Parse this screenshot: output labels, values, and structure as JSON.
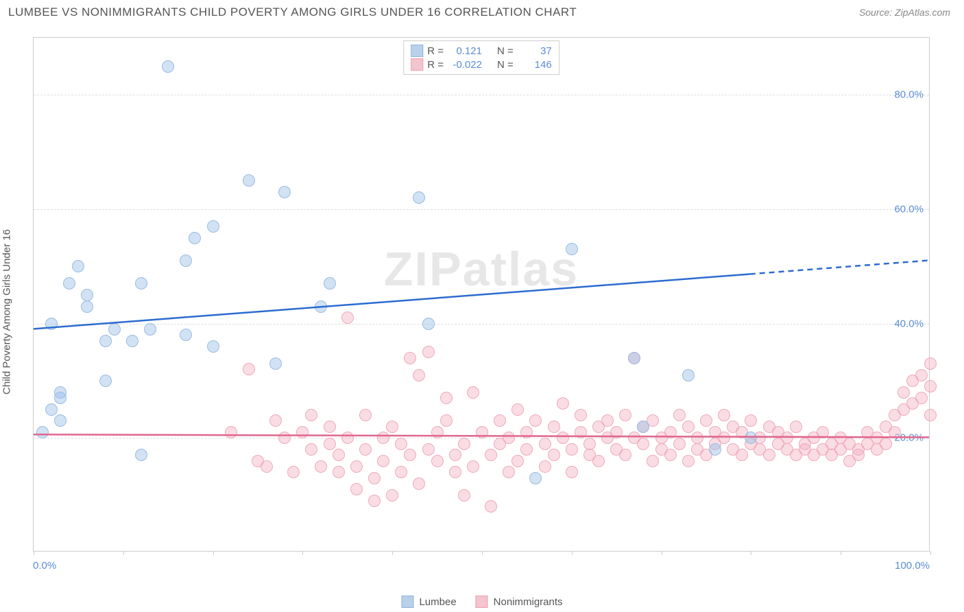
{
  "title": "LUMBEE VS NONIMMIGRANTS CHILD POVERTY AMONG GIRLS UNDER 16 CORRELATION CHART",
  "source": "Source: ZipAtlas.com",
  "y_axis_label": "Child Poverty Among Girls Under 16",
  "watermark": "ZIPatlas",
  "chart": {
    "type": "scatter",
    "xlim": [
      0,
      100
    ],
    "ylim": [
      0,
      90
    ],
    "x_ticks": [
      0,
      10,
      20,
      30,
      40,
      50,
      60,
      70,
      80,
      90,
      100
    ],
    "x_tick_labels": {
      "0": "0.0%",
      "100": "100.0%"
    },
    "y_ticks": [
      20,
      40,
      60,
      80
    ],
    "grid_color": "#dddddd",
    "border_color": "#cccccc",
    "background_color": "#ffffff",
    "marker_radius": 9,
    "marker_stroke_width": 1.5,
    "series": [
      {
        "name": "Lumbee",
        "color_fill": "rgba(150,190,230,0.45)",
        "color_stroke": "#9bbbe0",
        "swatch_fill": "#b8d0ea",
        "swatch_stroke": "#8fb3dd",
        "R": "0.121",
        "N": "37",
        "trend": {
          "y_at_x0": 39,
          "y_at_x100": 51,
          "solid_until_x": 80,
          "color": "#2b6bd0",
          "width": 2.5
        },
        "points": [
          [
            3,
            27
          ],
          [
            2,
            25
          ],
          [
            3,
            23
          ],
          [
            3,
            28
          ],
          [
            1,
            21
          ],
          [
            2,
            40
          ],
          [
            4,
            47
          ],
          [
            5,
            50
          ],
          [
            6,
            45
          ],
          [
            6,
            43
          ],
          [
            8,
            30
          ],
          [
            8,
            37
          ],
          [
            9,
            39
          ],
          [
            11,
            37
          ],
          [
            12,
            47
          ],
          [
            12,
            17
          ],
          [
            13,
            39
          ],
          [
            15,
            85
          ],
          [
            17,
            38
          ],
          [
            17,
            51
          ],
          [
            18,
            55
          ],
          [
            20,
            36
          ],
          [
            20,
            57
          ],
          [
            24,
            65
          ],
          [
            27,
            33
          ],
          [
            28,
            63
          ],
          [
            33,
            47
          ],
          [
            32,
            43
          ],
          [
            43,
            62
          ],
          [
            44,
            40
          ],
          [
            56,
            13
          ],
          [
            60,
            53
          ],
          [
            67,
            34
          ],
          [
            68,
            22
          ],
          [
            73,
            31
          ],
          [
            76,
            18
          ],
          [
            80,
            20
          ]
        ]
      },
      {
        "name": "Nonimmigrants",
        "color_fill": "rgba(245,180,195,0.45)",
        "color_stroke": "#eea9b8",
        "swatch_fill": "#f4c4cf",
        "swatch_stroke": "#ec9fb1",
        "R": "-0.022",
        "N": "146",
        "trend": {
          "y_at_x0": 20.5,
          "y_at_x100": 20,
          "solid_until_x": 100,
          "color": "#e06690",
          "width": 2.5
        },
        "points": [
          [
            22,
            21
          ],
          [
            24,
            32
          ],
          [
            25,
            16
          ],
          [
            26,
            15
          ],
          [
            27,
            23
          ],
          [
            28,
            20
          ],
          [
            29,
            14
          ],
          [
            30,
            21
          ],
          [
            31,
            24
          ],
          [
            31,
            18
          ],
          [
            32,
            15
          ],
          [
            33,
            19
          ],
          [
            33,
            22
          ],
          [
            34,
            14
          ],
          [
            34,
            17
          ],
          [
            35,
            41
          ],
          [
            35,
            20
          ],
          [
            36,
            15
          ],
          [
            36,
            11
          ],
          [
            37,
            24
          ],
          [
            37,
            18
          ],
          [
            38,
            9
          ],
          [
            38,
            13
          ],
          [
            39,
            20
          ],
          [
            39,
            16
          ],
          [
            40,
            22
          ],
          [
            40,
            10
          ],
          [
            41,
            19
          ],
          [
            41,
            14
          ],
          [
            42,
            34
          ],
          [
            42,
            17
          ],
          [
            43,
            31
          ],
          [
            43,
            12
          ],
          [
            44,
            35
          ],
          [
            44,
            18
          ],
          [
            45,
            16
          ],
          [
            45,
            21
          ],
          [
            46,
            23
          ],
          [
            46,
            27
          ],
          [
            47,
            17
          ],
          [
            47,
            14
          ],
          [
            48,
            19
          ],
          [
            48,
            10
          ],
          [
            49,
            28
          ],
          [
            49,
            15
          ],
          [
            50,
            21
          ],
          [
            51,
            8
          ],
          [
            51,
            17
          ],
          [
            52,
            19
          ],
          [
            52,
            23
          ],
          [
            53,
            14
          ],
          [
            53,
            20
          ],
          [
            54,
            16
          ],
          [
            54,
            25
          ],
          [
            55,
            18
          ],
          [
            55,
            21
          ],
          [
            56,
            23
          ],
          [
            57,
            15
          ],
          [
            57,
            19
          ],
          [
            58,
            22
          ],
          [
            58,
            17
          ],
          [
            59,
            26
          ],
          [
            59,
            20
          ],
          [
            60,
            18
          ],
          [
            60,
            14
          ],
          [
            61,
            21
          ],
          [
            61,
            24
          ],
          [
            62,
            17
          ],
          [
            62,
            19
          ],
          [
            63,
            22
          ],
          [
            63,
            16
          ],
          [
            64,
            20
          ],
          [
            64,
            23
          ],
          [
            65,
            18
          ],
          [
            65,
            21
          ],
          [
            66,
            24
          ],
          [
            66,
            17
          ],
          [
            67,
            34
          ],
          [
            67,
            20
          ],
          [
            68,
            19
          ],
          [
            68,
            22
          ],
          [
            69,
            16
          ],
          [
            69,
            23
          ],
          [
            70,
            20
          ],
          [
            70,
            18
          ],
          [
            71,
            21
          ],
          [
            71,
            17
          ],
          [
            72,
            24
          ],
          [
            72,
            19
          ],
          [
            73,
            22
          ],
          [
            73,
            16
          ],
          [
            74,
            20
          ],
          [
            74,
            18
          ],
          [
            75,
            23
          ],
          [
            75,
            17
          ],
          [
            76,
            21
          ],
          [
            76,
            19
          ],
          [
            77,
            24
          ],
          [
            77,
            20
          ],
          [
            78,
            18
          ],
          [
            78,
            22
          ],
          [
            79,
            17
          ],
          [
            79,
            21
          ],
          [
            80,
            19
          ],
          [
            80,
            23
          ],
          [
            81,
            18
          ],
          [
            81,
            20
          ],
          [
            82,
            22
          ],
          [
            82,
            17
          ],
          [
            83,
            21
          ],
          [
            83,
            19
          ],
          [
            84,
            18
          ],
          [
            84,
            20
          ],
          [
            85,
            17
          ],
          [
            85,
            22
          ],
          [
            86,
            19
          ],
          [
            86,
            18
          ],
          [
            87,
            20
          ],
          [
            87,
            17
          ],
          [
            88,
            21
          ],
          [
            88,
            18
          ],
          [
            89,
            19
          ],
          [
            89,
            17
          ],
          [
            90,
            20
          ],
          [
            90,
            18
          ],
          [
            91,
            16
          ],
          [
            91,
            19
          ],
          [
            92,
            18
          ],
          [
            92,
            17
          ],
          [
            93,
            19
          ],
          [
            93,
            21
          ],
          [
            94,
            18
          ],
          [
            94,
            20
          ],
          [
            95,
            22
          ],
          [
            95,
            19
          ],
          [
            96,
            24
          ],
          [
            96,
            21
          ],
          [
            97,
            25
          ],
          [
            97,
            28
          ],
          [
            98,
            26
          ],
          [
            98,
            30
          ],
          [
            99,
            27
          ],
          [
            99,
            31
          ],
          [
            100,
            33
          ],
          [
            100,
            29
          ],
          [
            100,
            24
          ]
        ]
      }
    ]
  },
  "stats_labels": {
    "R": "R =",
    "N": "N ="
  },
  "bottom_legend": [
    {
      "label": "Lumbee"
    },
    {
      "label": "Nonimmigrants"
    }
  ],
  "colors": {
    "title": "#555555",
    "source": "#888888",
    "axis_label": "#555555",
    "tick_label": "#5b8dd6"
  },
  "typography": {
    "title_fontsize": 17,
    "source_fontsize": 14,
    "axis_label_fontsize": 15,
    "tick_label_fontsize": 15,
    "legend_fontsize": 15,
    "watermark_fontsize": 70
  }
}
